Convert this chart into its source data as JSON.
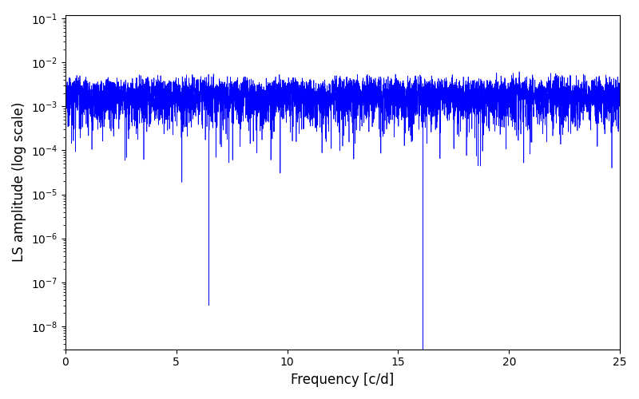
{
  "xlabel": "Frequency [c/d]",
  "ylabel": "LS amplitude (log scale)",
  "xlim": [
    0,
    25
  ],
  "ylim": [
    3e-09,
    0.12
  ],
  "line_color": "#0000ff",
  "line_width": 0.5,
  "bg_color": "#ffffff",
  "figsize": [
    8.0,
    5.0
  ],
  "dpi": 100,
  "seed": 42,
  "n_points": 8000,
  "freq_max": 25.0,
  "xlabel_fontsize": 12,
  "ylabel_fontsize": 12,
  "tick_labelsize": 10
}
